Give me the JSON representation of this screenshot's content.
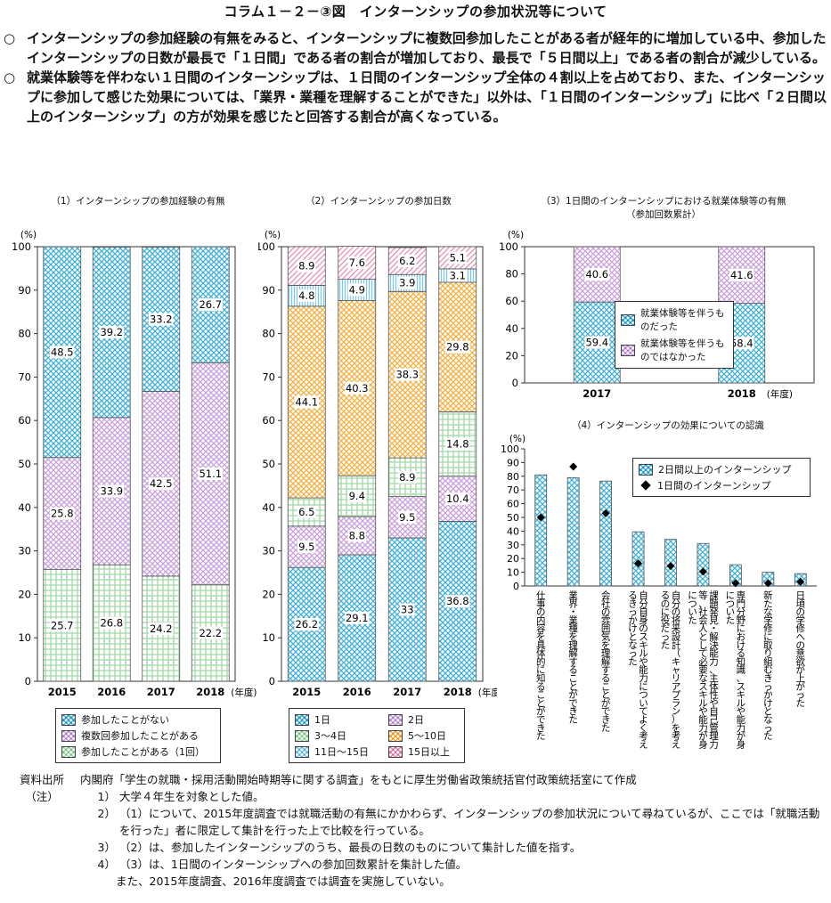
{
  "title": "コラム１－２－③図　インターンシップの参加状況等について",
  "bullets": [
    {
      "mark": "○",
      "text": "インターンシップの参加経験の有無をみると、インターンシップに複数回参加したことがある者が経年的に増加している中、参加したインターンシップの日数が最長で「１日間」である者の割合が増加しており、最長で「５日間以上」である者の割合が減少している。"
    },
    {
      "mark": "○",
      "text": "就業体験等を伴わない１日間のインターンシップは、１日間のインターンシップ全体の４割以上を占めており、また、インターンシップに参加して感じた効果については、「業界・業種を理解することができた」以外は、「１日間のインターンシップ」に比べ「２日間以上のインターンシップ」の方が効果を感じたと回答する割合が高くなっている。"
    }
  ],
  "chart_data": [
    {
      "type": "bar",
      "stacked": true,
      "title": "（1）インターンシップの参加経験の有無",
      "ylabel": "(%)",
      "xunit": "(年度)",
      "ylim": [
        0,
        100
      ],
      "yticks": [
        0,
        10,
        20,
        30,
        40,
        50,
        60,
        70,
        80,
        90,
        100
      ],
      "categories": [
        "2015",
        "2016",
        "2017",
        "2018"
      ],
      "series": [
        {
          "name": "参加したことがある（1回）",
          "values": [
            25.7,
            26.8,
            24.2,
            22.2
          ],
          "labels": [
            "25.7",
            "26.8",
            "24.2",
            "22.2"
          ],
          "color": "#9fd8a8",
          "pattern": "grid"
        },
        {
          "name": "複数回参加したことがある",
          "values": [
            25.8,
            33.9,
            42.5,
            51.1
          ],
          "labels": [
            "25.8",
            "33.9",
            "42.5",
            "51.1"
          ],
          "color": "#c9a0dc",
          "pattern": "cross"
        },
        {
          "name": "参加したことがない",
          "values": [
            48.5,
            39.2,
            33.2,
            26.7
          ],
          "labels": [
            "48.5",
            "39.2",
            "33.2",
            "26.7"
          ],
          "color": "#3fb0d8",
          "pattern": "cross"
        }
      ],
      "legend_order": [
        2,
        1,
        0
      ],
      "legend_position": "bottom"
    },
    {
      "type": "bar",
      "stacked": true,
      "title": "（2）インターンシップの参加日数",
      "ylabel": "(%)",
      "xunit": "(年度)",
      "ylim": [
        0,
        100
      ],
      "yticks": [
        0,
        10,
        20,
        30,
        40,
        50,
        60,
        70,
        80,
        90,
        100
      ],
      "categories": [
        "2015",
        "2016",
        "2017",
        "2018"
      ],
      "series": [
        {
          "name": "1日",
          "values": [
            26.2,
            29.1,
            33,
            36.8
          ],
          "labels": [
            "26.2",
            "29.1",
            "33",
            "36.8"
          ],
          "color": "#3fb0d8",
          "pattern": "cross"
        },
        {
          "name": "2日",
          "values": [
            9.5,
            8.8,
            9.5,
            10.4
          ],
          "labels": [
            "9.5",
            "8.8",
            "9.5",
            "10.4"
          ],
          "color": "#c9a0dc",
          "pattern": "cross"
        },
        {
          "name": "3～4日",
          "values": [
            6.5,
            9.4,
            8.9,
            14.8
          ],
          "labels": [
            "6.5",
            "9.4",
            "8.9",
            "14.8"
          ],
          "color": "#9fd8a8",
          "pattern": "grid"
        },
        {
          "name": "5～10日",
          "values": [
            44.1,
            40.3,
            38.3,
            29.8
          ],
          "labels": [
            "44.1",
            "40.3",
            "38.3",
            "29.8"
          ],
          "color": "#f5b041",
          "pattern": "cross"
        },
        {
          "name": "11日～15日",
          "values": [
            4.8,
            4.9,
            3.9,
            3.1
          ],
          "labels": [
            "4.8",
            "4.9",
            "3.9",
            "3.1"
          ],
          "color": "#7fc8e8",
          "pattern": "vert"
        },
        {
          "name": "15日以上",
          "values": [
            8.9,
            7.6,
            6.2,
            5.1
          ],
          "labels": [
            "8.9",
            "7.6",
            "6.2",
            "5.1"
          ],
          "color": "#e58fb8",
          "pattern": "diag"
        }
      ],
      "legend_order": [
        0,
        1,
        2,
        3,
        4,
        5
      ],
      "legend_position": "bottom"
    },
    {
      "type": "bar",
      "stacked": true,
      "title": "（3）1日間のインターンシップにおける就業体験等の有無",
      "subtitle": "（参加回数累計）",
      "ylabel": "(%)",
      "xunit": "(年度)",
      "ylim": [
        0,
        100
      ],
      "yticks": [
        0,
        20,
        40,
        60,
        80,
        100
      ],
      "categories": [
        "2017",
        "2018"
      ],
      "series": [
        {
          "name": "就業体験等を伴うものだった",
          "values": [
            59.4,
            58.4
          ],
          "labels": [
            "59.4",
            "58.4"
          ],
          "color": "#3fb0d8",
          "pattern": "cross"
        },
        {
          "name": "就業体験等を伴うものではなかった",
          "values": [
            40.6,
            41.6
          ],
          "labels": [
            "40.6",
            "41.6"
          ],
          "color": "#c9a0dc",
          "pattern": "cross"
        }
      ],
      "legend_position": "center"
    },
    {
      "type": "bar",
      "title": "（4）インターンシップの効果についての認識",
      "ylabel": "(%)",
      "ylim": [
        0,
        100
      ],
      "yticks": [
        0,
        10,
        20,
        30,
        40,
        50,
        60,
        70,
        80,
        90,
        100
      ],
      "categories": [
        "仕事の内容を具体的に知ることができた",
        "業界・業種を理解することができた",
        "会社の雰囲気を理解することができた",
        "自分自身のスキルや能力についてよく考えるきっかけとなった",
        "自分の将来設計（キャリアプラン）を考えるのに役だった",
        "課題発見・解決能力、主体性や自己管理力等、社会人として必要なスキルや能力が身についた",
        "専門分野における知識、スキルや能力が身についた",
        "新たな学修に取り組むきっかけとなった",
        "日頃の学修への意欲が上がった"
      ],
      "series": [
        {
          "name": "2日間以上のインターンシップ",
          "values": [
            81,
            79,
            76.5,
            39.5,
            34,
            31,
            15.5,
            10,
            9
          ],
          "color": "#3fb0d8",
          "pattern": "cross"
        },
        {
          "name": "1日間のインターンシップ",
          "values": [
            50,
            87,
            53,
            16.5,
            14.5,
            10.5,
            2,
            2,
            3
          ],
          "color": "#000000",
          "marker": "diamond"
        }
      ],
      "legend_position": "top-right"
    }
  ],
  "notes": {
    "source_label": "資料出所",
    "source_text": "内閣府「学生の就職・採用活動開始時期等に関する調査」をもとに厚生労働省政策統括官付政策統括室にて作成",
    "note_label": "（注）",
    "items": [
      {
        "num": "1）",
        "text": "大学４年生を対象とした値。"
      },
      {
        "num": "2）",
        "text": "（1）について、2015年度調査では就職活動の有無にかかわらず、インターンシップの参加状況について尋ねているが、ここでは「就職活動を行った」者に限定して集計を行った上で比較を行っている。"
      },
      {
        "num": "3）",
        "text": "（2）は、参加したインターンシップのうち、最長の日数のものについて集計した値を指す。"
      },
      {
        "num": "4）",
        "text": "（3）は、1日間のインターンシップへの参加回数累計を集計した値。"
      }
    ],
    "extra": "また、2015年度調査、2016年度調査では調査を実施していない。"
  }
}
